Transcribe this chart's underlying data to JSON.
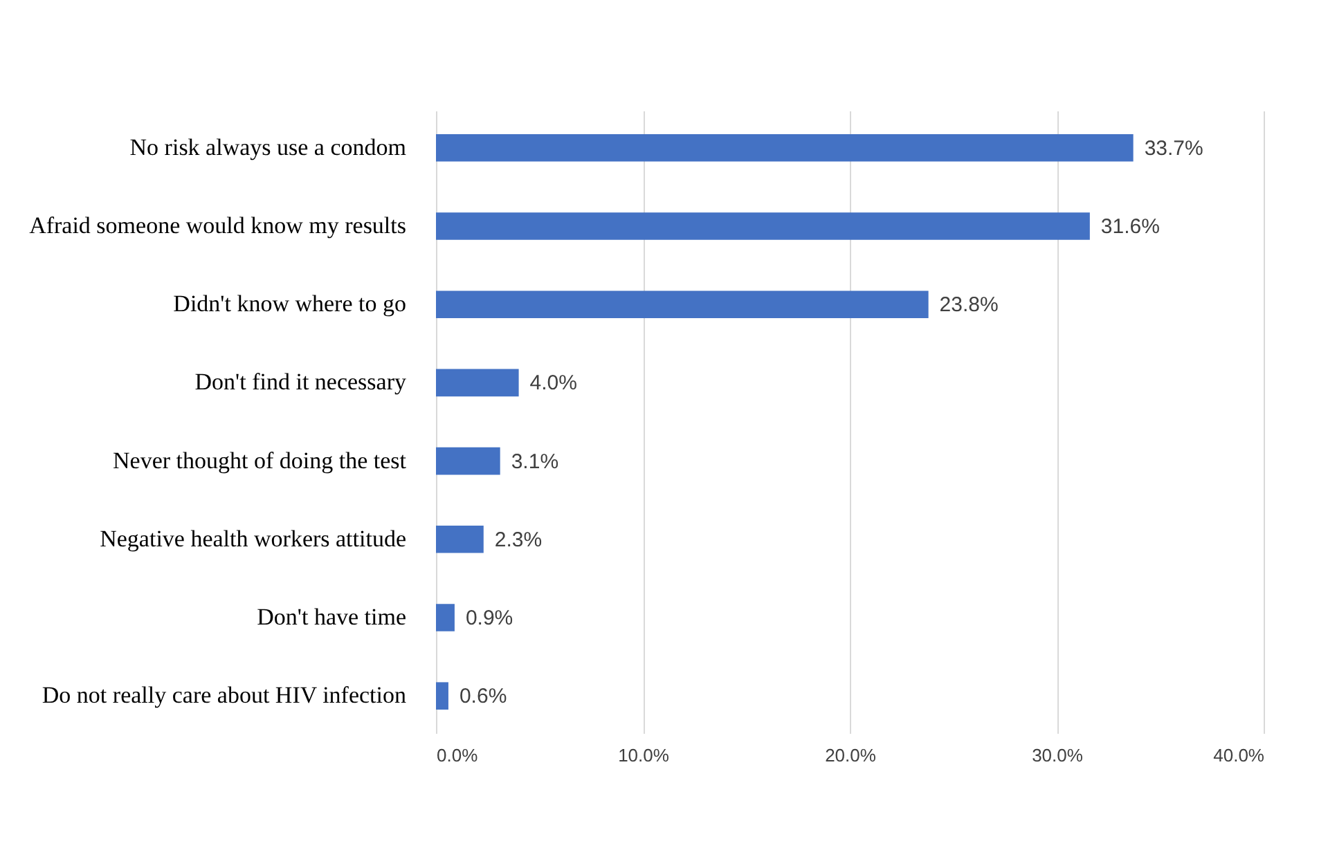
{
  "chart_data": {
    "type": "bar",
    "orientation": "horizontal",
    "categories": [
      "No risk always use a condom",
      "Afraid someone would know my results",
      "Didn't know where to go",
      "Don't find it necessary",
      "Never thought of doing the test",
      "Negative health workers attitude",
      "Don't have time",
      "Do not really care about HIV infection"
    ],
    "values": [
      33.7,
      31.6,
      23.8,
      4.0,
      3.1,
      2.3,
      0.9,
      0.6
    ],
    "value_labels": [
      "33.7%",
      "31.6%",
      "23.8%",
      "4.0%",
      "3.1%",
      "2.3%",
      "0.9%",
      "0.6%"
    ],
    "color": "#4472c4",
    "xlim": [
      0,
      40
    ],
    "xticks": [
      {
        "value": 0,
        "label": "0.0%"
      },
      {
        "value": 10,
        "label": "10.0%"
      },
      {
        "value": 20,
        "label": "20.0%"
      },
      {
        "value": 30,
        "label": "30.0%"
      },
      {
        "value": 40,
        "label": "40.0%"
      }
    ],
    "grid": "x"
  }
}
